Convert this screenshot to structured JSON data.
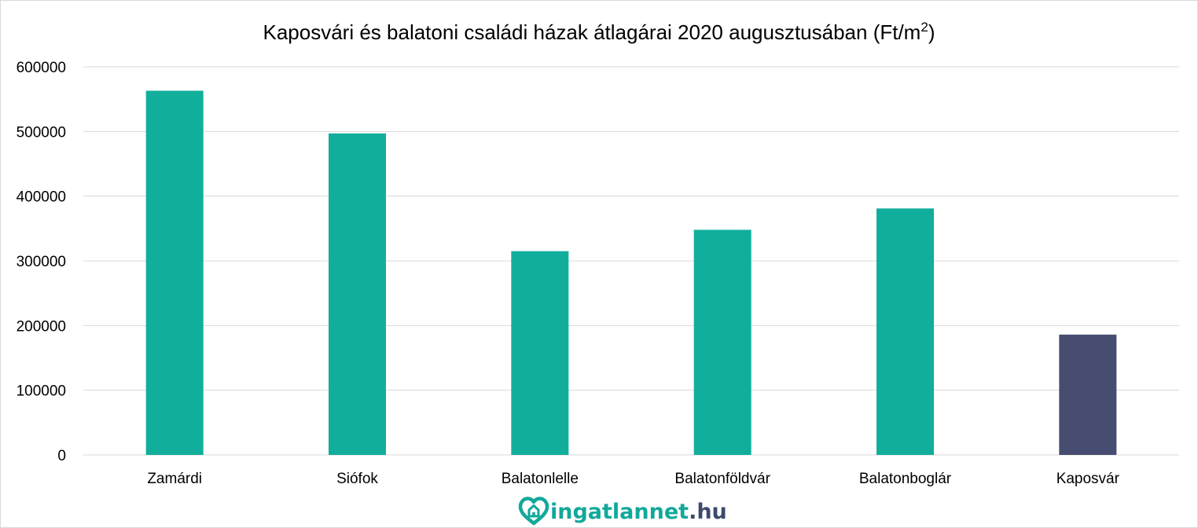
{
  "chart_data": {
    "type": "bar",
    "title_main": "Kaposvári és balatoni családi házak átlagárai 2020 augusztusában (Ft/m",
    "title_sup": "2",
    "title_end": ")",
    "categories": [
      "Zamárdi",
      "Siófok",
      "Balatonlelle",
      "Balatonföldvár",
      "Balatonboglár",
      "Kaposvár"
    ],
    "values": [
      563000,
      497000,
      315000,
      348000,
      381000,
      186000
    ],
    "bar_colors": [
      "#12ae9c",
      "#12ae9c",
      "#12ae9c",
      "#12ae9c",
      "#12ae9c",
      "#474d70"
    ],
    "ylim": [
      0,
      600000
    ],
    "yticks": [
      0,
      100000,
      200000,
      300000,
      400000,
      500000,
      600000
    ],
    "ytick_labels": [
      "0",
      "100000",
      "200000",
      "300000",
      "400000",
      "500000",
      "600000"
    ],
    "grid": true,
    "gridline_color": "#d9d9d9",
    "legend": false
  },
  "logo": {
    "name": "ingatlannet",
    "tld": ".hu",
    "icon": "heart-house-icon",
    "color_primary": "#12a89a",
    "color_secondary": "#3c4a6b"
  }
}
